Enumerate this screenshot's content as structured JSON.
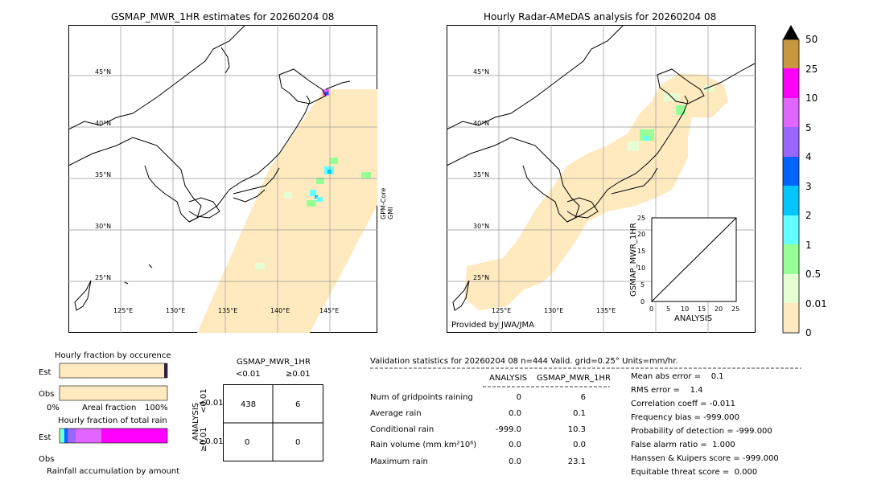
{
  "left_map": {
    "title": "GSMAP_MWR_1HR estimates for 20260204 08",
    "lat_labels": [
      "45°N",
      "40°N",
      "35°N",
      "30°N",
      "25°N"
    ],
    "lon_labels": [
      "125°E",
      "130°E",
      "135°E",
      "140°E",
      "145°E"
    ],
    "side_label_1": "GPM-Core",
    "side_label_2": "GMI"
  },
  "right_map": {
    "title": "Hourly Radar-AMeDAS analysis for 20260204 08",
    "lat_labels": [
      "45°N",
      "40°N",
      "35°N",
      "30°N",
      "25°N"
    ],
    "lon_labels": [
      "125°E",
      "130°E",
      "135°E"
    ],
    "credit": "Provided by JWA/JMA",
    "inset": {
      "ylabel": "GSMAP_MWR_1HR",
      "xlabel": "ANALYSIS",
      "ticks": [
        "0",
        "5",
        "10",
        "15",
        "20",
        "25"
      ]
    }
  },
  "colorbar": {
    "labels": [
      "50",
      "25",
      "10",
      "5",
      "4",
      "3",
      "2",
      "1",
      "0.5",
      "0.01",
      "0"
    ],
    "colors": [
      "#c8963c",
      "#ff00ff",
      "#e066ff",
      "#9966ff",
      "#0064ff",
      "#00c8ff",
      "#64ffff",
      "#96ff96",
      "#e6ffd2",
      "#ffeac0"
    ]
  },
  "occurrence": {
    "title": "Hourly fraction by occurence",
    "row_labels": [
      "Est",
      "Obs"
    ],
    "axis_left": "0%",
    "axis_mid": "Areal fraction",
    "axis_right": "100%"
  },
  "total_rain": {
    "title": "Hourly fraction of total rain",
    "row_labels": [
      "Est",
      "Obs"
    ],
    "footer": "Rainfall accumulation by amount"
  },
  "contingency": {
    "title": "GSMAP_MWR_1HR",
    "col_labels": [
      "<0.01",
      "≥0.01"
    ],
    "row_axis": "ANALYSIS",
    "row_labels": [
      "<0.01",
      "≥0.01"
    ],
    "cells": [
      "438",
      "6",
      "0",
      "0"
    ]
  },
  "validation": {
    "header": "Validation statistics for 20260204 08  n=444 Valid. grid=0.25° Units=mm/hr.",
    "col_analysis": "ANALYSIS",
    "col_gsmap": "GSMAP_MWR_1HR",
    "rows": [
      {
        "label": "Num of gridpoints raining",
        "analysis": "0",
        "gsmap": "6"
      },
      {
        "label": "Average rain",
        "analysis": "0.0",
        "gsmap": "0.1"
      },
      {
        "label": "Conditional rain",
        "analysis": "-999.0",
        "gsmap": "10.3"
      },
      {
        "label": "Rain volume (mm km²10⁶)",
        "analysis": "0.0",
        "gsmap": "0.0"
      },
      {
        "label": "Maximum rain",
        "analysis": "0.0",
        "gsmap": "23.1"
      }
    ],
    "scores": [
      "Mean abs error =    0.1",
      "RMS error =    1.4",
      "Correlation coeff = -0.011",
      "Frequency bias = -999.000",
      "Probability of detection = -999.000",
      "False alarm ratio =  1.000",
      "Hanssen & Kuipers score = -999.000",
      "Equitable threat score =  0.000"
    ]
  }
}
